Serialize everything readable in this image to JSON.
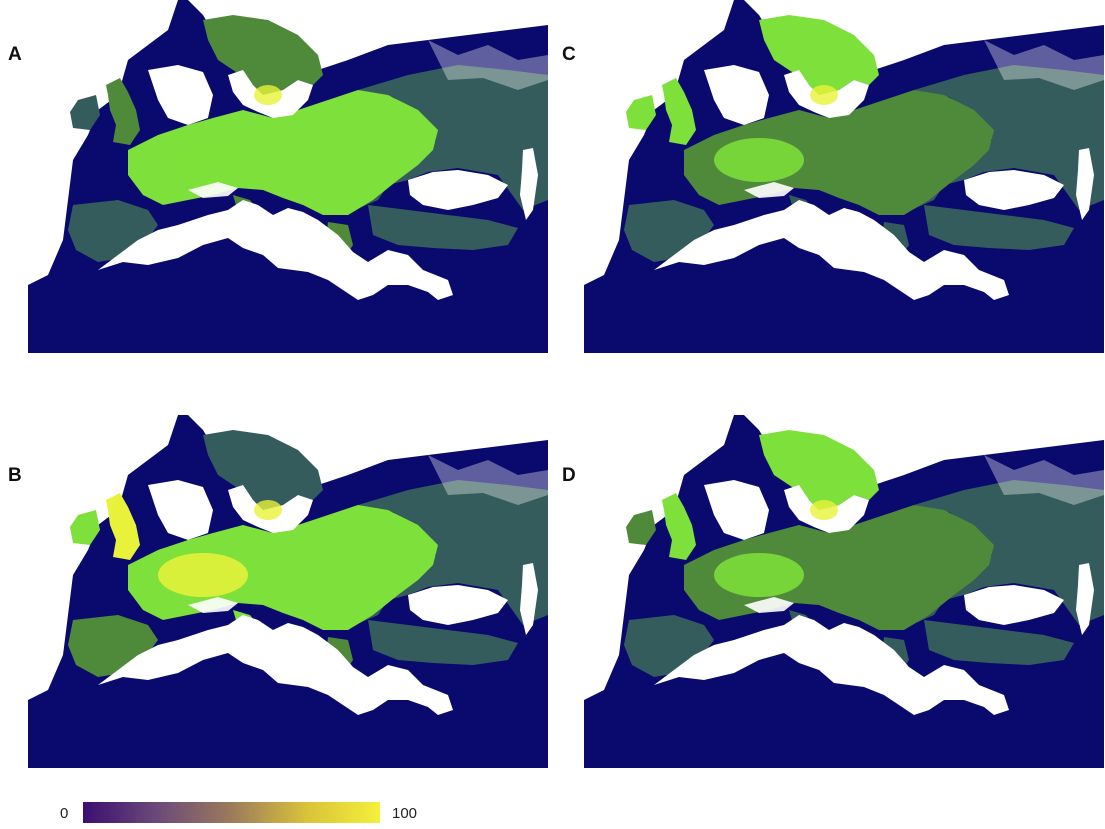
{
  "panels": [
    {
      "label": "A",
      "variant": "A"
    },
    {
      "label": "C",
      "variant": "C"
    },
    {
      "label": "B",
      "variant": "B"
    },
    {
      "label": "D",
      "variant": "D"
    }
  ],
  "legend": {
    "min": "0",
    "max": "100",
    "colors": [
      "#3b0f70",
      "#6b4a7a",
      "#9c7a5c",
      "#d9c23a",
      "#f4f03a"
    ]
  },
  "colors": {
    "ocean": "#0a0a6e",
    "land_low": "#355c5c",
    "land_mid": "#4f8a3a",
    "land_high": "#7ee03a",
    "land_peak": "#e8f23a",
    "snow": "#ffffff"
  }
}
